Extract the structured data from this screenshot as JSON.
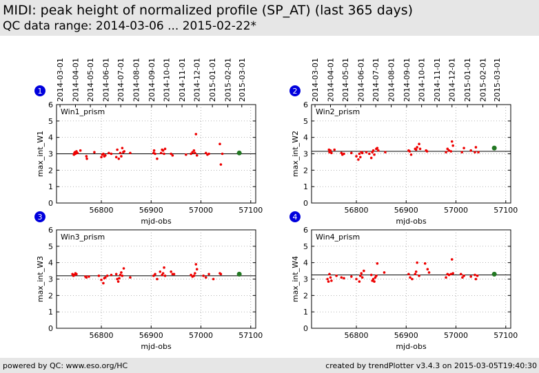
{
  "header": {
    "title": "MIDI: peak height of normalized profile (SP_AT) (last 365 days)",
    "subtitle": "QC data range: 2014-03-06 ... 2015-02-22*"
  },
  "footer": {
    "left": "powered by QC: www.eso.org/HC",
    "right": "created by trendPlotter v3.4.3 on 2015-03-05T19:40:30"
  },
  "colors": {
    "point": "#ee0000",
    "latest": "#227722",
    "badge": "#0000dd",
    "grid": "#888888"
  },
  "chart_data": [
    {
      "type": "scatter",
      "badge": "1",
      "panel_label": "Win1_prism",
      "xlabel": "mjd-obs",
      "ylabel": "max_int_W1",
      "xlim": [
        56710,
        57110
      ],
      "ylim": [
        0,
        6
      ],
      "grid": true,
      "x_ticks": [
        56800,
        56900,
        57000,
        57100
      ],
      "y_ticks": [
        0,
        1,
        2,
        3,
        4,
        5,
        6
      ],
      "top_ticks": [
        "2014-03-01",
        "2014-04-01",
        "2014-05-01",
        "2014-06-01",
        "2014-07-01",
        "2014-08-01",
        "2014-09-01",
        "2014-10-01",
        "2014-11-01",
        "2014-12-01",
        "2015-01-01",
        "2015-02-01",
        "2015-03-01"
      ],
      "top_tick_mjd": [
        56717,
        56748,
        56778,
        56809,
        56839,
        56870,
        56901,
        56931,
        56962,
        56992,
        57023,
        57054,
        57082
      ],
      "reference_line": 3.0,
      "x": [
        56745,
        56746,
        56747,
        56748,
        56750,
        56752,
        56758,
        56770,
        56771,
        56786,
        56800,
        56802,
        56804,
        56806,
        56808,
        56815,
        56820,
        56830,
        56832,
        56835,
        56838,
        56840,
        56842,
        56844,
        56846,
        56858,
        56905,
        56906,
        56908,
        56912,
        56920,
        56922,
        56924,
        56926,
        56928,
        56940,
        56943,
        56970,
        56980,
        56983,
        56986,
        56988,
        56990,
        56992,
        57010,
        57013,
        57016,
        57038,
        57040,
        57043
      ],
      "y": [
        2.95,
        3.05,
        3.1,
        3.0,
        3.15,
        3.05,
        3.2,
        2.85,
        2.7,
        3.1,
        2.8,
        2.95,
        3.0,
        2.85,
        2.9,
        3.05,
        3.0,
        2.8,
        3.25,
        2.7,
        3.05,
        2.85,
        3.35,
        3.1,
        3.15,
        3.05,
        3.05,
        3.2,
        3.0,
        2.7,
        3.05,
        3.25,
        3.2,
        3.0,
        3.3,
        3.0,
        2.9,
        2.95,
        3.0,
        3.1,
        3.2,
        3.05,
        4.2,
        2.9,
        3.05,
        2.95,
        3.0,
        3.6,
        2.35,
        3.0
      ],
      "latest": {
        "x": 57077,
        "y": 3.05
      }
    },
    {
      "type": "scatter",
      "badge": "2",
      "panel_label": "Win2_prism",
      "xlabel": "mjd-obs",
      "ylabel": "max_int_W2",
      "xlim": [
        56710,
        57110
      ],
      "ylim": [
        0,
        6
      ],
      "grid": true,
      "x_ticks": [
        56800,
        56900,
        57000,
        57100
      ],
      "y_ticks": [
        0,
        1,
        2,
        3,
        4,
        5,
        6
      ],
      "top_ticks": [
        "2014-03-01",
        "2014-04-01",
        "2014-05-01",
        "2014-06-01",
        "2014-07-01",
        "2014-08-01",
        "2014-09-01",
        "2014-10-01",
        "2014-11-01",
        "2014-12-01",
        "2015-01-01",
        "2015-02-01",
        "2015-03-01"
      ],
      "top_tick_mjd": [
        56717,
        56748,
        56778,
        56809,
        56839,
        56870,
        56901,
        56931,
        56962,
        56992,
        57023,
        57054,
        57082
      ],
      "reference_line": 3.15,
      "x": [
        56745,
        56746,
        56748,
        56750,
        56756,
        56770,
        56772,
        56775,
        56790,
        56800,
        56804,
        56806,
        56808,
        56810,
        56812,
        56820,
        56826,
        56830,
        56832,
        56834,
        56836,
        56840,
        56842,
        56844,
        56858,
        56905,
        56907,
        56910,
        56918,
        56920,
        56922,
        56926,
        56928,
        56940,
        56942,
        56980,
        56983,
        56986,
        56990,
        56992,
        56994,
        57012,
        57016,
        57030,
        57038,
        57040,
        57045
      ],
      "y": [
        3.25,
        3.1,
        3.2,
        3.05,
        3.25,
        3.05,
        2.95,
        3.0,
        3.05,
        2.85,
        2.65,
        3.0,
        2.8,
        3.1,
        3.05,
        3.1,
        3.0,
        2.75,
        3.1,
        3.2,
        2.95,
        3.3,
        3.35,
        3.2,
        3.1,
        3.2,
        3.15,
        2.95,
        3.3,
        3.25,
        3.4,
        3.6,
        3.3,
        3.2,
        3.15,
        3.1,
        3.3,
        3.2,
        3.15,
        3.75,
        3.5,
        3.1,
        3.35,
        3.2,
        3.1,
        3.4,
        3.1
      ],
      "latest": {
        "x": 57077,
        "y": 3.35
      }
    },
    {
      "type": "scatter",
      "badge": "3",
      "panel_label": "Win3_prism",
      "xlabel": "mjd-obs",
      "ylabel": "max_int_W3",
      "xlim": [
        56710,
        57110
      ],
      "ylim": [
        0,
        6
      ],
      "grid": true,
      "x_ticks": [
        56800,
        56900,
        57000,
        57100
      ],
      "y_ticks": [
        0,
        1,
        2,
        3,
        4,
        5,
        6
      ],
      "top_ticks": [],
      "top_tick_mjd": [],
      "reference_line": 3.2,
      "x": [
        56742,
        56744,
        56746,
        56748,
        56750,
        56768,
        56770,
        56775,
        56795,
        56800,
        56804,
        56806,
        56808,
        56812,
        56820,
        56830,
        56832,
        56834,
        56836,
        56838,
        56840,
        56842,
        56845,
        56858,
        56905,
        56908,
        56912,
        56918,
        56922,
        56924,
        56926,
        56928,
        56940,
        56943,
        56946,
        56980,
        56983,
        56986,
        56988,
        56990,
        56992,
        57005,
        57010,
        57016,
        57025,
        57038,
        57040
      ],
      "y": [
        3.3,
        3.2,
        3.25,
        3.35,
        3.3,
        3.15,
        3.1,
        3.15,
        3.2,
        2.95,
        2.75,
        3.05,
        3.1,
        3.2,
        3.25,
        3.3,
        3.0,
        2.85,
        3.05,
        3.25,
        3.4,
        3.2,
        3.65,
        3.1,
        3.2,
        3.3,
        3.0,
        3.45,
        3.25,
        3.35,
        3.7,
        3.2,
        3.45,
        3.3,
        3.3,
        3.25,
        3.15,
        3.2,
        3.35,
        3.9,
        3.6,
        3.2,
        3.1,
        3.3,
        3.0,
        3.35,
        3.3
      ],
      "latest": {
        "x": 57077,
        "y": 3.3
      }
    },
    {
      "type": "scatter",
      "badge": "4",
      "panel_label": "Win4_prism",
      "xlabel": "mjd-obs",
      "ylabel": "max_int_W4",
      "xlim": [
        56710,
        57110
      ],
      "ylim": [
        0,
        6
      ],
      "grid": true,
      "x_ticks": [
        56800,
        56900,
        57000,
        57100
      ],
      "y_ticks": [
        0,
        1,
        2,
        3,
        4,
        5,
        6
      ],
      "top_ticks": [],
      "top_tick_mjd": [],
      "reference_line": 3.25,
      "x": [
        56742,
        56744,
        56746,
        56748,
        56750,
        56760,
        56770,
        56775,
        56790,
        56800,
        56806,
        56808,
        56810,
        56812,
        56815,
        56830,
        56832,
        56834,
        56836,
        56838,
        56840,
        56842,
        56856,
        56905,
        56908,
        56912,
        56918,
        56920,
        56922,
        56926,
        56938,
        56943,
        56946,
        56980,
        56983,
        56986,
        56990,
        56992,
        56994,
        57010,
        57013,
        57016,
        57030,
        57038,
        57040,
        57043
      ],
      "y": [
        3.0,
        2.85,
        3.3,
        3.1,
        2.9,
        3.2,
        3.1,
        3.05,
        3.15,
        3.0,
        2.85,
        3.2,
        3.35,
        3.1,
        3.5,
        3.25,
        2.9,
        3.0,
        2.85,
        3.1,
        3.2,
        3.95,
        3.4,
        3.3,
        3.1,
        3.0,
        3.3,
        3.45,
        4.0,
        3.2,
        3.95,
        3.6,
        3.4,
        3.1,
        3.3,
        3.25,
        3.3,
        4.2,
        3.35,
        3.3,
        3.1,
        3.2,
        3.15,
        3.25,
        3.0,
        3.2
      ],
      "latest": {
        "x": 57077,
        "y": 3.3
      }
    }
  ]
}
